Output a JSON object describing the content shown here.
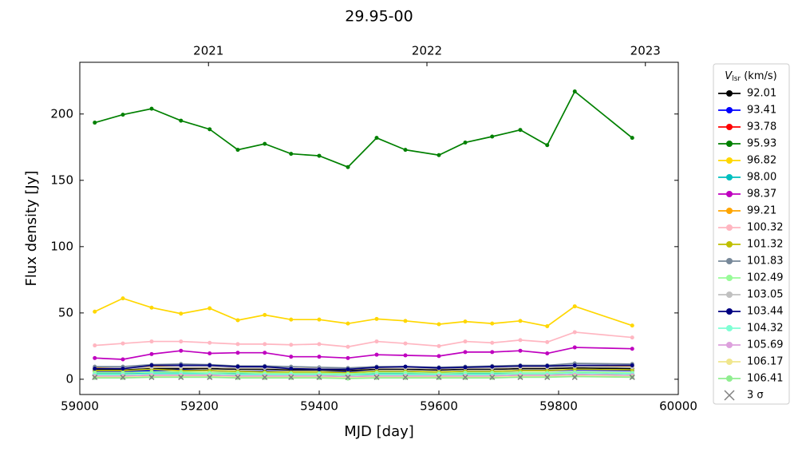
{
  "chart_data": {
    "type": "line",
    "title": "29.95-00",
    "xlabel": "MJD [day]",
    "ylabel": "Flux density [Jy]",
    "x": [
      59025,
      59072,
      59120,
      59169,
      59217,
      59264,
      59309,
      59353,
      59400,
      59448,
      59496,
      59544,
      59600,
      59644,
      59689,
      59736,
      59781,
      59827,
      59923
    ],
    "xlim": [
      59000,
      60000
    ],
    "xticks": [
      59000,
      59200,
      59400,
      59600,
      59800,
      60000
    ],
    "top_xticks": [
      {
        "value": 59215,
        "label": "2021"
      },
      {
        "value": 59580,
        "label": "2022"
      },
      {
        "value": 59945,
        "label": "2023"
      }
    ],
    "ylim": [
      -11.5,
      239
    ],
    "yticks": [
      0,
      50,
      100,
      150,
      200
    ],
    "grid": false,
    "legend_position": "outside-right",
    "legend_title": {
      "symbol": "V",
      "subscript": "lsr",
      "unit": "(km/s)"
    },
    "series": [
      {
        "name": "92.01",
        "color": "#000000",
        "values": [
          7,
          7,
          8,
          8,
          8,
          7.5,
          7.5,
          7,
          7,
          6.5,
          7.5,
          7.5,
          7,
          7.5,
          7.5,
          8,
          8,
          8.5,
          8
        ]
      },
      {
        "name": "93.41",
        "color": "#0000ff",
        "values": [
          6,
          6,
          6.5,
          7,
          6.5,
          6,
          6,
          5.5,
          5.5,
          5.5,
          6,
          6,
          5.5,
          6,
          6,
          6.5,
          6.5,
          7,
          6.5
        ]
      },
      {
        "name": "93.78",
        "color": "#ff0000",
        "values": [
          3,
          3,
          3.5,
          3.5,
          3.5,
          3,
          3,
          3,
          3,
          2.5,
          3,
          3,
          3,
          3,
          3,
          3.5,
          3.5,
          4,
          3.5
        ]
      },
      {
        "name": "95.93",
        "color": "#008000",
        "values": [
          193.5,
          199.5,
          204,
          195,
          188.5,
          173,
          177.5,
          170,
          168.5,
          160,
          182,
          173,
          169,
          178.5,
          183,
          188,
          176.5,
          217,
          182
        ]
      },
      {
        "name": "96.82",
        "color": "#ffd700",
        "values": [
          51,
          61,
          54,
          49.5,
          53.5,
          44.5,
          48.5,
          45,
          45,
          42,
          45.5,
          44,
          41.5,
          43.5,
          42,
          44,
          40,
          55,
          40.5
        ]
      },
      {
        "name": "98.00",
        "color": "#00bfbf",
        "values": [
          4,
          4,
          4.5,
          4.5,
          4.5,
          4,
          4,
          4,
          4,
          3.5,
          4,
          4,
          4,
          4,
          4,
          4.5,
          4.5,
          5,
          4.5
        ]
      },
      {
        "name": "98.37",
        "color": "#bf00bf",
        "values": [
          16,
          15,
          19,
          21.5,
          19.5,
          20,
          20,
          17,
          17,
          16,
          18.5,
          18,
          17.5,
          20.5,
          20.5,
          21.5,
          19.5,
          24,
          23
        ]
      },
      {
        "name": "99.21",
        "color": "#ffa500",
        "values": [
          8.5,
          8,
          9.5,
          9,
          9,
          8.5,
          8.5,
          8,
          8,
          7.5,
          8.5,
          8.5,
          8,
          8.5,
          8.5,
          9,
          9,
          10,
          9.5
        ]
      },
      {
        "name": "100.32",
        "color": "#ffb6c1",
        "values": [
          25.5,
          27,
          28.5,
          28.5,
          27.5,
          26.5,
          26.5,
          26,
          26.5,
          24.5,
          28.5,
          27,
          25,
          28.5,
          27.5,
          29.5,
          28,
          35.5,
          31.5
        ]
      },
      {
        "name": "101.32",
        "color": "#bfbf00",
        "values": [
          6.5,
          6.5,
          7.5,
          6.5,
          6.5,
          6,
          5.5,
          5.5,
          5.5,
          5,
          6,
          6,
          5.5,
          6,
          6,
          6.5,
          6.5,
          7.5,
          7
        ]
      },
      {
        "name": "101.83",
        "color": "#778899",
        "values": [
          9.5,
          9.5,
          11,
          11.5,
          11,
          10,
          10,
          9.5,
          9,
          8.5,
          9.5,
          9.5,
          9,
          9.5,
          10,
          10.5,
          10.5,
          12,
          11.5
        ]
      },
      {
        "name": "102.49",
        "color": "#98fb98",
        "values": [
          5,
          5,
          5.5,
          5.5,
          5,
          5,
          4.5,
          4.5,
          4.5,
          4,
          5,
          5,
          4.5,
          5,
          5,
          5,
          5,
          5.5,
          5
        ]
      },
      {
        "name": "103.05",
        "color": "#c0c0c0",
        "values": [
          8,
          8,
          9,
          9,
          9,
          8.5,
          8.5,
          8,
          8,
          7.5,
          8.5,
          8.5,
          8,
          8.5,
          8.5,
          9,
          9,
          9.5,
          9
        ]
      },
      {
        "name": "103.44",
        "color": "#000080",
        "values": [
          8,
          8,
          10.5,
          10.5,
          10.5,
          9.5,
          9.5,
          8,
          7.5,
          7.5,
          9,
          9.5,
          8.5,
          9,
          9.5,
          10,
          10,
          10.5,
          10.5
        ]
      },
      {
        "name": "104.32",
        "color": "#7fffd4",
        "values": [
          3.5,
          3.5,
          4,
          4,
          4,
          3.5,
          3.5,
          3.5,
          3.5,
          3,
          3.5,
          3.5,
          3.5,
          3.5,
          3.5,
          4,
          4,
          4.5,
          4
        ]
      },
      {
        "name": "105.69",
        "color": "#dda0dd",
        "values": [
          2.5,
          2.5,
          3,
          3,
          3,
          2.5,
          2.5,
          2.5,
          2.5,
          2,
          2.5,
          2.5,
          2.5,
          2.5,
          2.5,
          3,
          3,
          3.5,
          3
        ]
      },
      {
        "name": "106.17",
        "color": "#f0e68c",
        "values": [
          1.5,
          1.5,
          2,
          2,
          2,
          1.5,
          1.5,
          1.5,
          1.5,
          1,
          1.5,
          1.5,
          1.5,
          1.5,
          1.5,
          2,
          2,
          2.5,
          2
        ]
      },
      {
        "name": "106.41",
        "color": "#90ee90",
        "values": [
          1,
          1,
          1.5,
          1.5,
          1.5,
          1,
          1,
          1,
          1,
          0.5,
          1,
          1,
          1,
          1,
          1,
          1.5,
          1.5,
          2,
          1.5
        ]
      },
      {
        "name": "3 σ",
        "color": "#808080",
        "marker": "x",
        "line": false,
        "values": [
          1.5,
          1.5,
          1.5,
          1.5,
          1.5,
          1.5,
          1.5,
          1.5,
          1.5,
          1.5,
          1.5,
          1.5,
          1.5,
          1.5,
          1.5,
          1.5,
          1.5,
          1.5,
          1.5
        ]
      }
    ]
  }
}
